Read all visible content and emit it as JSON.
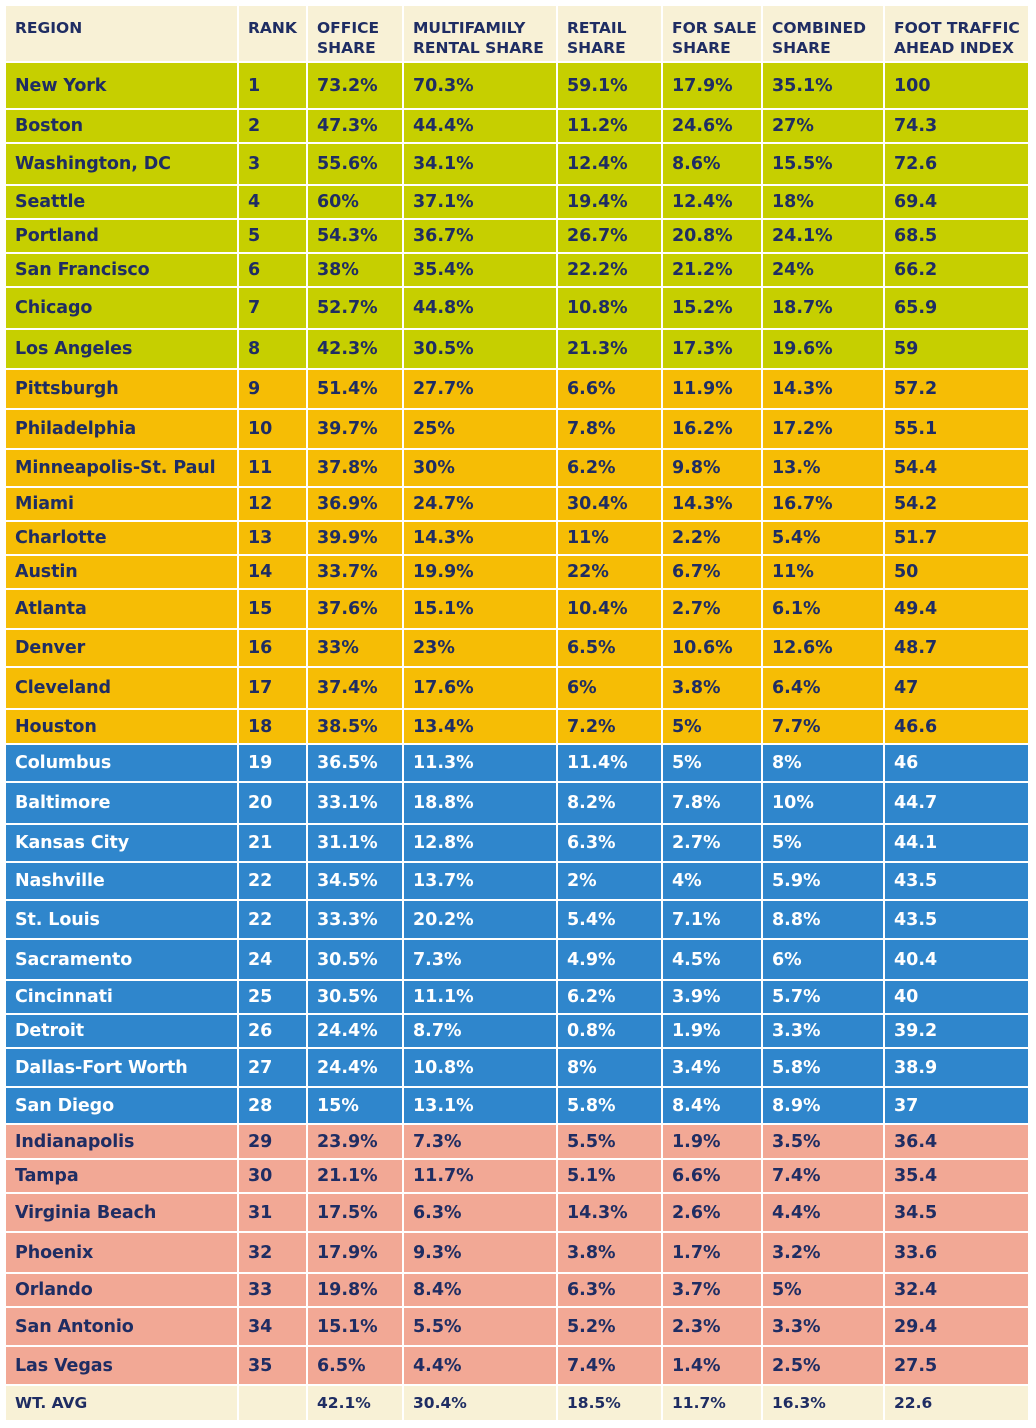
{
  "tier_colors": {
    "green": "#c6cf00",
    "orange": "#f6bd05",
    "blue": "#2f86cc",
    "pink": "#f2a895",
    "cream": "#f8f1d6",
    "text_dark": "#1f2d63",
    "text_light": "#ffffff"
  },
  "table": {
    "headers": [
      "REGION",
      "RANK",
      "OFFICE SHARE",
      "MULTIFAMILY RENTAL SHARE",
      "RETAIL SHARE",
      "FOR SALE SHARE",
      "COMBINED SHARE",
      "FOOT TRAFFIC AHEAD INDEX"
    ],
    "rows": [
      {
        "tier": "green",
        "cells": [
          "New York",
          "1",
          "73.2%",
          "70.3%",
          "59.1%",
          "17.9%",
          "35.1%",
          "100"
        ]
      },
      {
        "tier": "green",
        "cells": [
          "Boston",
          "2",
          "47.3%",
          "44.4%",
          "11.2%",
          "24.6%",
          "27%",
          "74.3"
        ]
      },
      {
        "tier": "green",
        "cells": [
          "Washington, DC",
          "3",
          "55.6%",
          "34.1%",
          "12.4%",
          "8.6%",
          "15.5%",
          "72.6"
        ]
      },
      {
        "tier": "green",
        "cells": [
          "Seattle",
          "4",
          "60%",
          "37.1%",
          "19.4%",
          "12.4%",
          "18%",
          "69.4"
        ]
      },
      {
        "tier": "green",
        "cells": [
          "Portland",
          "5",
          "54.3%",
          "36.7%",
          "26.7%",
          "20.8%",
          "24.1%",
          "68.5"
        ]
      },
      {
        "tier": "green",
        "cells": [
          "San Francisco",
          "6",
          "38%",
          "35.4%",
          "22.2%",
          "21.2%",
          "24%",
          "66.2"
        ]
      },
      {
        "tier": "green",
        "cells": [
          "Chicago",
          "7",
          "52.7%",
          "44.8%",
          "10.8%",
          "15.2%",
          "18.7%",
          "65.9"
        ]
      },
      {
        "tier": "green",
        "cells": [
          "Los Angeles",
          "8",
          "42.3%",
          "30.5%",
          "21.3%",
          "17.3%",
          "19.6%",
          "59"
        ]
      },
      {
        "tier": "orange",
        "cells": [
          "Pittsburgh",
          "9",
          "51.4%",
          "27.7%",
          "6.6%",
          "11.9%",
          "14.3%",
          "57.2"
        ]
      },
      {
        "tier": "orange",
        "cells": [
          "Philadelphia",
          "10",
          "39.7%",
          "25%",
          "7.8%",
          "16.2%",
          "17.2%",
          "55.1"
        ]
      },
      {
        "tier": "orange",
        "cells": [
          "Minneapolis-St. Paul",
          "11",
          "37.8%",
          "30%",
          "6.2%",
          "9.8%",
          "13.%",
          "54.4"
        ]
      },
      {
        "tier": "orange",
        "cells": [
          "Miami",
          "12",
          "36.9%",
          "24.7%",
          "30.4%",
          "14.3%",
          "16.7%",
          "54.2"
        ]
      },
      {
        "tier": "orange",
        "cells": [
          "Charlotte",
          "13",
          "39.9%",
          "14.3%",
          "11%",
          "2.2%",
          "5.4%",
          "51.7"
        ]
      },
      {
        "tier": "orange",
        "cells": [
          "Austin",
          "14",
          "33.7%",
          "19.9%",
          "22%",
          "6.7%",
          "11%",
          "50"
        ]
      },
      {
        "tier": "orange",
        "cells": [
          "Atlanta",
          "15",
          "37.6%",
          "15.1%",
          "10.4%",
          "2.7%",
          "6.1%",
          "49.4"
        ]
      },
      {
        "tier": "orange",
        "cells": [
          "Denver",
          "16",
          "33%",
          "23%",
          "6.5%",
          "10.6%",
          "12.6%",
          "48.7"
        ]
      },
      {
        "tier": "orange",
        "cells": [
          "Cleveland",
          "17",
          "37.4%",
          "17.6%",
          "6%",
          "3.8%",
          "6.4%",
          "47"
        ]
      },
      {
        "tier": "orange",
        "cells": [
          "Houston",
          "18",
          "38.5%",
          "13.4%",
          "7.2%",
          "5%",
          "7.7%",
          "46.6"
        ]
      },
      {
        "tier": "blue",
        "cells": [
          "Columbus",
          "19",
          "36.5%",
          "11.3%",
          "11.4%",
          "5%",
          "8%",
          "46"
        ]
      },
      {
        "tier": "blue",
        "cells": [
          "Baltimore",
          "20",
          "33.1%",
          "18.8%",
          "8.2%",
          "7.8%",
          "10%",
          "44.7"
        ]
      },
      {
        "tier": "blue",
        "cells": [
          "Kansas City",
          "21",
          "31.1%",
          "12.8%",
          "6.3%",
          "2.7%",
          "5%",
          "44.1"
        ]
      },
      {
        "tier": "blue",
        "cells": [
          "Nashville",
          "22",
          "34.5%",
          "13.7%",
          "2%",
          "4%",
          "5.9%",
          "43.5"
        ]
      },
      {
        "tier": "blue",
        "cells": [
          "St. Louis",
          "22",
          "33.3%",
          "20.2%",
          "5.4%",
          "7.1%",
          "8.8%",
          "43.5"
        ]
      },
      {
        "tier": "blue",
        "cells": [
          "Sacramento",
          "24",
          "30.5%",
          "7.3%",
          "4.9%",
          "4.5%",
          "6%",
          "40.4"
        ]
      },
      {
        "tier": "blue",
        "cells": [
          "Cincinnati",
          "25",
          "30.5%",
          "11.1%",
          "6.2%",
          "3.9%",
          "5.7%",
          "40"
        ]
      },
      {
        "tier": "blue",
        "cells": [
          "Detroit",
          "26",
          "24.4%",
          "8.7%",
          "0.8%",
          "1.9%",
          "3.3%",
          "39.2"
        ]
      },
      {
        "tier": "blue",
        "cells": [
          "Dallas-Fort Worth",
          "27",
          "24.4%",
          "10.8%",
          "8%",
          "3.4%",
          "5.8%",
          "38.9"
        ]
      },
      {
        "tier": "blue",
        "cells": [
          "San Diego",
          "28",
          "15%",
          "13.1%",
          "5.8%",
          "8.4%",
          "8.9%",
          "37"
        ]
      },
      {
        "tier": "pink",
        "cells": [
          "Indianapolis",
          "29",
          "23.9%",
          "7.3%",
          "5.5%",
          "1.9%",
          "3.5%",
          "36.4"
        ]
      },
      {
        "tier": "pink",
        "cells": [
          "Tampa",
          "30",
          "21.1%",
          "11.7%",
          "5.1%",
          "6.6%",
          "7.4%",
          "35.4"
        ]
      },
      {
        "tier": "pink",
        "cells": [
          "Virginia Beach",
          "31",
          "17.5%",
          "6.3%",
          "14.3%",
          "2.6%",
          "4.4%",
          "34.5"
        ]
      },
      {
        "tier": "pink",
        "cells": [
          "Phoenix",
          "32",
          "17.9%",
          "9.3%",
          "3.8%",
          "1.7%",
          "3.2%",
          "33.6"
        ]
      },
      {
        "tier": "pink",
        "cells": [
          "Orlando",
          "33",
          "19.8%",
          "8.4%",
          "6.3%",
          "3.7%",
          "5%",
          "32.4"
        ]
      },
      {
        "tier": "pink",
        "cells": [
          "San Antonio",
          "34",
          "15.1%",
          "5.5%",
          "5.2%",
          "2.3%",
          "3.3%",
          "29.4"
        ]
      },
      {
        "tier": "pink",
        "cells": [
          "Las Vegas",
          "35",
          "6.5%",
          "4.4%",
          "7.4%",
          "1.4%",
          "2.5%",
          "27.5"
        ]
      }
    ],
    "footer": [
      "WT. AVG",
      "",
      "42.1%",
      "30.4%",
      "18.5%",
      "11.7%",
      "16.3%",
      "22.6"
    ]
  }
}
